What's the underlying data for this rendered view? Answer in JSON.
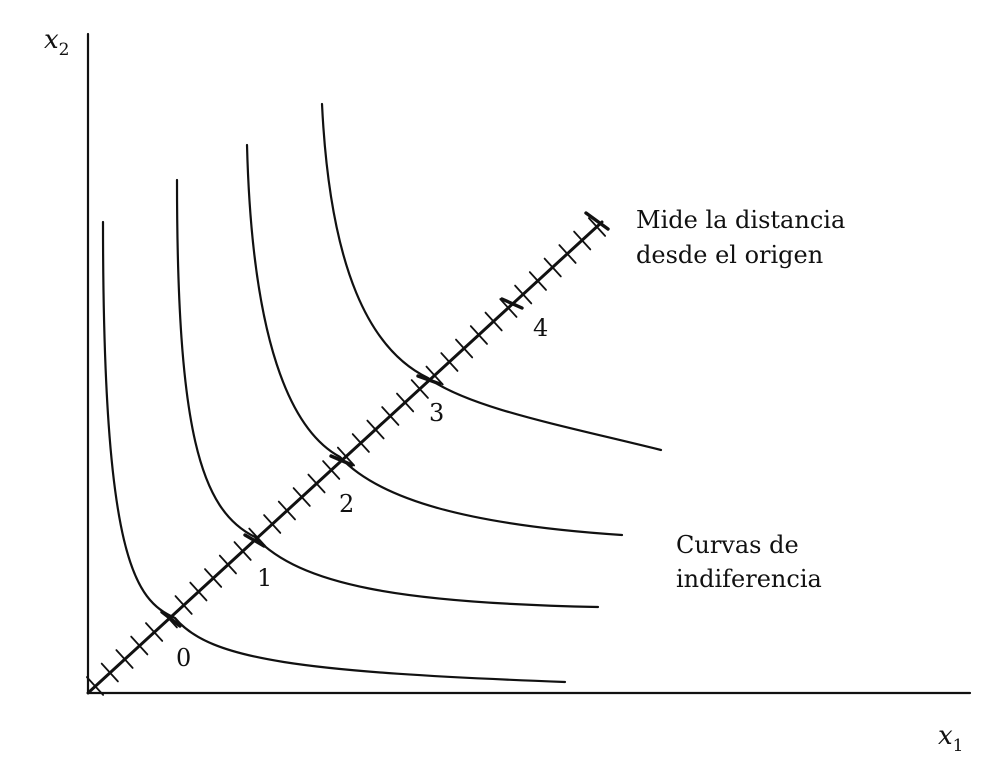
{
  "axes": {
    "y_label": "x",
    "y_label_sub": "2",
    "x_label": "x",
    "x_label_sub": "1"
  },
  "ray": {
    "label_line1": "Mide la distancia",
    "label_line2": "desde el origen",
    "marks": [
      "0",
      "1",
      "2",
      "3",
      "4"
    ]
  },
  "curves": {
    "label_line1": "Curvas de",
    "label_line2": "indiferencia"
  },
  "colors": {
    "ink": "#111111",
    "background": "#ffffff"
  }
}
